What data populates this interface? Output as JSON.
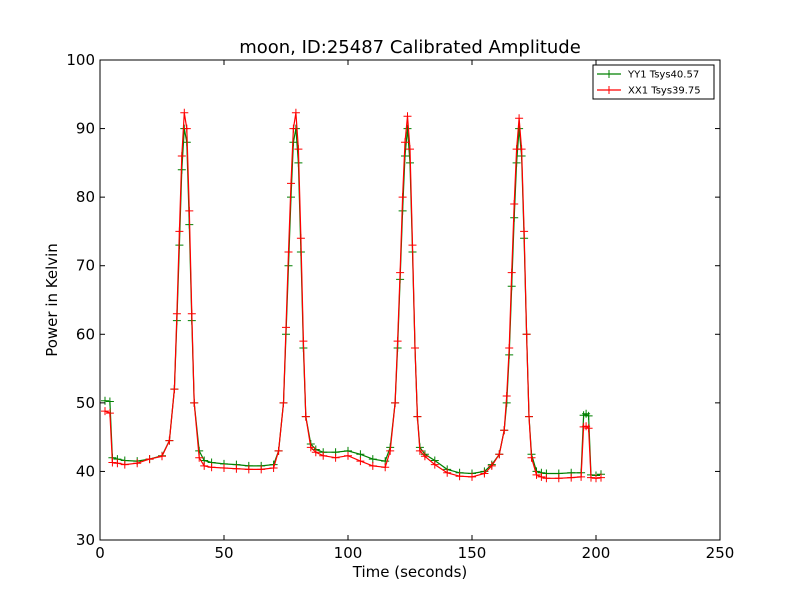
{
  "chart_data": {
    "type": "line",
    "title": "moon, ID:25487 Calibrated Amplitude",
    "xlabel": "Time (seconds)",
    "ylabel": "Power in Kelvin",
    "xlim": [
      0,
      250
    ],
    "ylim": [
      30,
      100
    ],
    "xticks": [
      0,
      50,
      100,
      150,
      200,
      250
    ],
    "yticks": [
      30,
      40,
      50,
      60,
      70,
      80,
      90,
      100
    ],
    "grid": false,
    "legend_position": "top-right",
    "series": [
      {
        "name": "YY1 Tsys40.57",
        "color": "#008000",
        "marker": "plus",
        "x": [
          2,
          4,
          5,
          7,
          10,
          15,
          20,
          25,
          28,
          30,
          31,
          32,
          33,
          34,
          35,
          36,
          37,
          38,
          40,
          42,
          45,
          50,
          55,
          60,
          65,
          70,
          72,
          74,
          75,
          76,
          77,
          78,
          79,
          80,
          81,
          82,
          83,
          85,
          87,
          90,
          95,
          100,
          105,
          110,
          115,
          117,
          119,
          120,
          121,
          122,
          123,
          124,
          125,
          126,
          127,
          128,
          129,
          131,
          135,
          140,
          145,
          150,
          155,
          158,
          161,
          163,
          164,
          165,
          166,
          167,
          168,
          169,
          170,
          171,
          172,
          173,
          174,
          176,
          178,
          180,
          185,
          190,
          194,
          195,
          196,
          197,
          198,
          200,
          202
        ],
        "values": [
          50.3,
          50.2,
          42.0,
          41.8,
          41.6,
          41.5,
          41.8,
          42.3,
          44.5,
          52.0,
          62.0,
          73.0,
          84.0,
          90.0,
          88.0,
          76.0,
          62.0,
          50.0,
          43.0,
          41.6,
          41.3,
          41.1,
          41.0,
          40.8,
          40.8,
          41.0,
          43.0,
          50.0,
          60.0,
          70.0,
          80.0,
          88.0,
          90.0,
          85.0,
          72.0,
          58.0,
          48.0,
          44.0,
          43.2,
          42.8,
          42.8,
          43.0,
          42.5,
          41.8,
          41.5,
          43.5,
          50.0,
          58.0,
          68.0,
          78.0,
          86.0,
          90.0,
          85.0,
          72.0,
          58.0,
          48.0,
          43.5,
          42.5,
          41.6,
          40.3,
          39.8,
          39.7,
          40.0,
          41.0,
          42.5,
          46.0,
          50.0,
          57.0,
          67.0,
          77.0,
          85.0,
          90.0,
          86.0,
          74.0,
          60.0,
          48.0,
          42.5,
          40.0,
          39.8,
          39.7,
          39.7,
          39.8,
          39.8,
          48.2,
          48.4,
          48.1,
          39.5,
          39.4,
          39.6
        ]
      },
      {
        "name": "XX1 Tsys39.75",
        "color": "#ff0000",
        "marker": "plus",
        "x": [
          2,
          4,
          5,
          7,
          10,
          15,
          20,
          25,
          28,
          30,
          31,
          32,
          33,
          34,
          35,
          36,
          37,
          38,
          40,
          42,
          45,
          50,
          55,
          60,
          65,
          70,
          72,
          74,
          75,
          76,
          77,
          78,
          79,
          80,
          81,
          82,
          83,
          85,
          87,
          90,
          95,
          100,
          105,
          110,
          115,
          117,
          119,
          120,
          121,
          122,
          123,
          124,
          125,
          126,
          127,
          128,
          129,
          131,
          135,
          140,
          145,
          150,
          155,
          158,
          161,
          163,
          164,
          165,
          166,
          167,
          168,
          169,
          170,
          171,
          172,
          173,
          174,
          176,
          178,
          180,
          185,
          190,
          194,
          195,
          196,
          197,
          198,
          200,
          202
        ],
        "values": [
          48.8,
          48.5,
          41.3,
          41.2,
          41.0,
          41.2,
          41.8,
          42.2,
          44.5,
          52.0,
          63.0,
          75.0,
          86.0,
          92.3,
          90.0,
          78.0,
          63.0,
          50.0,
          42.0,
          40.8,
          40.6,
          40.5,
          40.4,
          40.3,
          40.3,
          40.5,
          43.0,
          50.0,
          61.0,
          72.0,
          82.0,
          90.0,
          92.3,
          87.0,
          74.0,
          59.0,
          48.0,
          43.5,
          42.8,
          42.3,
          42.0,
          42.3,
          41.5,
          40.8,
          40.6,
          43.0,
          50.0,
          59.0,
          69.0,
          80.0,
          88.0,
          91.8,
          87.0,
          73.0,
          58.0,
          48.0,
          43.0,
          42.2,
          41.0,
          39.8,
          39.3,
          39.2,
          39.7,
          40.8,
          42.5,
          46.0,
          51.0,
          58.0,
          69.0,
          79.0,
          87.0,
          91.5,
          87.0,
          75.0,
          60.0,
          48.0,
          42.0,
          39.5,
          39.2,
          39.0,
          39.0,
          39.1,
          39.2,
          46.5,
          46.6,
          46.3,
          39.1,
          39.0,
          39.1
        ]
      }
    ]
  }
}
